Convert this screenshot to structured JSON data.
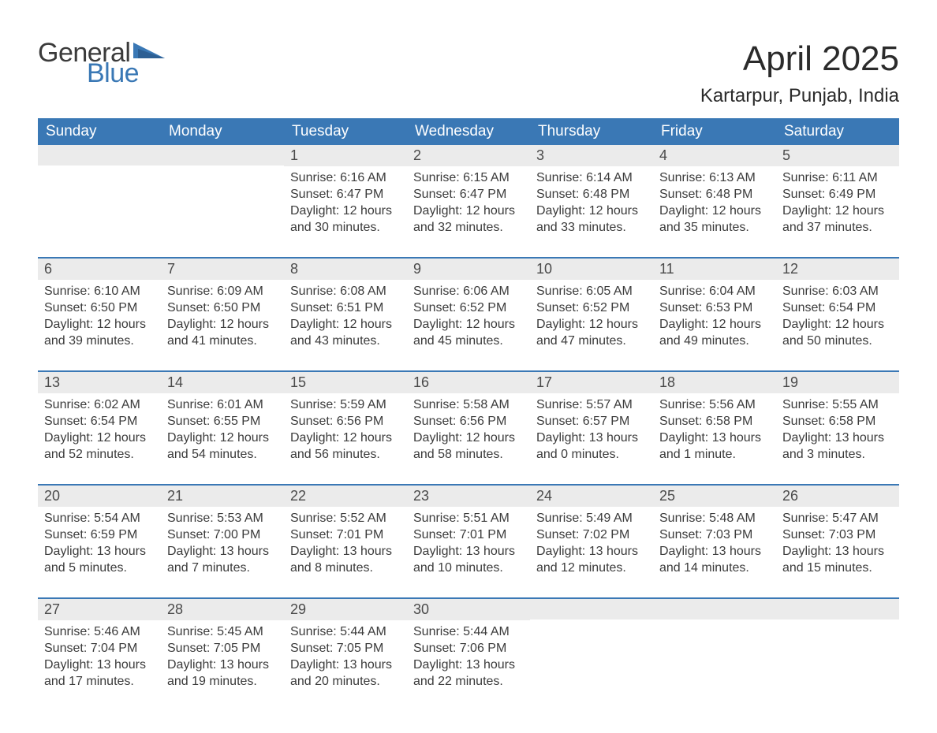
{
  "brand": {
    "text1": "General",
    "text2": "Blue",
    "accent": "#3a78b5"
  },
  "title": "April 2025",
  "location": "Kartarpur, Punjab, India",
  "dow": [
    "Sunday",
    "Monday",
    "Tuesday",
    "Wednesday",
    "Thursday",
    "Friday",
    "Saturday"
  ],
  "styling": {
    "header_bg": "#3a78b5",
    "daynum_bg": "#ebebeb",
    "week_border": "#3a78b5",
    "body_fontsize": 16,
    "dow_fontsize": 19,
    "title_fontsize": 44,
    "location_fontsize": 24
  },
  "weeks": [
    [
      {
        "n": "",
        "sr": "",
        "ss": "",
        "dl": ""
      },
      {
        "n": "",
        "sr": "",
        "ss": "",
        "dl": ""
      },
      {
        "n": "1",
        "sr": "Sunrise: 6:16 AM",
        "ss": "Sunset: 6:47 PM",
        "dl": "Daylight: 12 hours and 30 minutes."
      },
      {
        "n": "2",
        "sr": "Sunrise: 6:15 AM",
        "ss": "Sunset: 6:47 PM",
        "dl": "Daylight: 12 hours and 32 minutes."
      },
      {
        "n": "3",
        "sr": "Sunrise: 6:14 AM",
        "ss": "Sunset: 6:48 PM",
        "dl": "Daylight: 12 hours and 33 minutes."
      },
      {
        "n": "4",
        "sr": "Sunrise: 6:13 AM",
        "ss": "Sunset: 6:48 PM",
        "dl": "Daylight: 12 hours and 35 minutes."
      },
      {
        "n": "5",
        "sr": "Sunrise: 6:11 AM",
        "ss": "Sunset: 6:49 PM",
        "dl": "Daylight: 12 hours and 37 minutes."
      }
    ],
    [
      {
        "n": "6",
        "sr": "Sunrise: 6:10 AM",
        "ss": "Sunset: 6:50 PM",
        "dl": "Daylight: 12 hours and 39 minutes."
      },
      {
        "n": "7",
        "sr": "Sunrise: 6:09 AM",
        "ss": "Sunset: 6:50 PM",
        "dl": "Daylight: 12 hours and 41 minutes."
      },
      {
        "n": "8",
        "sr": "Sunrise: 6:08 AM",
        "ss": "Sunset: 6:51 PM",
        "dl": "Daylight: 12 hours and 43 minutes."
      },
      {
        "n": "9",
        "sr": "Sunrise: 6:06 AM",
        "ss": "Sunset: 6:52 PM",
        "dl": "Daylight: 12 hours and 45 minutes."
      },
      {
        "n": "10",
        "sr": "Sunrise: 6:05 AM",
        "ss": "Sunset: 6:52 PM",
        "dl": "Daylight: 12 hours and 47 minutes."
      },
      {
        "n": "11",
        "sr": "Sunrise: 6:04 AM",
        "ss": "Sunset: 6:53 PM",
        "dl": "Daylight: 12 hours and 49 minutes."
      },
      {
        "n": "12",
        "sr": "Sunrise: 6:03 AM",
        "ss": "Sunset: 6:54 PM",
        "dl": "Daylight: 12 hours and 50 minutes."
      }
    ],
    [
      {
        "n": "13",
        "sr": "Sunrise: 6:02 AM",
        "ss": "Sunset: 6:54 PM",
        "dl": "Daylight: 12 hours and 52 minutes."
      },
      {
        "n": "14",
        "sr": "Sunrise: 6:01 AM",
        "ss": "Sunset: 6:55 PM",
        "dl": "Daylight: 12 hours and 54 minutes."
      },
      {
        "n": "15",
        "sr": "Sunrise: 5:59 AM",
        "ss": "Sunset: 6:56 PM",
        "dl": "Daylight: 12 hours and 56 minutes."
      },
      {
        "n": "16",
        "sr": "Sunrise: 5:58 AM",
        "ss": "Sunset: 6:56 PM",
        "dl": "Daylight: 12 hours and 58 minutes."
      },
      {
        "n": "17",
        "sr": "Sunrise: 5:57 AM",
        "ss": "Sunset: 6:57 PM",
        "dl": "Daylight: 13 hours and 0 minutes."
      },
      {
        "n": "18",
        "sr": "Sunrise: 5:56 AM",
        "ss": "Sunset: 6:58 PM",
        "dl": "Daylight: 13 hours and 1 minute."
      },
      {
        "n": "19",
        "sr": "Sunrise: 5:55 AM",
        "ss": "Sunset: 6:58 PM",
        "dl": "Daylight: 13 hours and 3 minutes."
      }
    ],
    [
      {
        "n": "20",
        "sr": "Sunrise: 5:54 AM",
        "ss": "Sunset: 6:59 PM",
        "dl": "Daylight: 13 hours and 5 minutes."
      },
      {
        "n": "21",
        "sr": "Sunrise: 5:53 AM",
        "ss": "Sunset: 7:00 PM",
        "dl": "Daylight: 13 hours and 7 minutes."
      },
      {
        "n": "22",
        "sr": "Sunrise: 5:52 AM",
        "ss": "Sunset: 7:01 PM",
        "dl": "Daylight: 13 hours and 8 minutes."
      },
      {
        "n": "23",
        "sr": "Sunrise: 5:51 AM",
        "ss": "Sunset: 7:01 PM",
        "dl": "Daylight: 13 hours and 10 minutes."
      },
      {
        "n": "24",
        "sr": "Sunrise: 5:49 AM",
        "ss": "Sunset: 7:02 PM",
        "dl": "Daylight: 13 hours and 12 minutes."
      },
      {
        "n": "25",
        "sr": "Sunrise: 5:48 AM",
        "ss": "Sunset: 7:03 PM",
        "dl": "Daylight: 13 hours and 14 minutes."
      },
      {
        "n": "26",
        "sr": "Sunrise: 5:47 AM",
        "ss": "Sunset: 7:03 PM",
        "dl": "Daylight: 13 hours and 15 minutes."
      }
    ],
    [
      {
        "n": "27",
        "sr": "Sunrise: 5:46 AM",
        "ss": "Sunset: 7:04 PM",
        "dl": "Daylight: 13 hours and 17 minutes."
      },
      {
        "n": "28",
        "sr": "Sunrise: 5:45 AM",
        "ss": "Sunset: 7:05 PM",
        "dl": "Daylight: 13 hours and 19 minutes."
      },
      {
        "n": "29",
        "sr": "Sunrise: 5:44 AM",
        "ss": "Sunset: 7:05 PM",
        "dl": "Daylight: 13 hours and 20 minutes."
      },
      {
        "n": "30",
        "sr": "Sunrise: 5:44 AM",
        "ss": "Sunset: 7:06 PM",
        "dl": "Daylight: 13 hours and 22 minutes."
      },
      {
        "n": "",
        "sr": "",
        "ss": "",
        "dl": ""
      },
      {
        "n": "",
        "sr": "",
        "ss": "",
        "dl": ""
      },
      {
        "n": "",
        "sr": "",
        "ss": "",
        "dl": ""
      }
    ]
  ]
}
